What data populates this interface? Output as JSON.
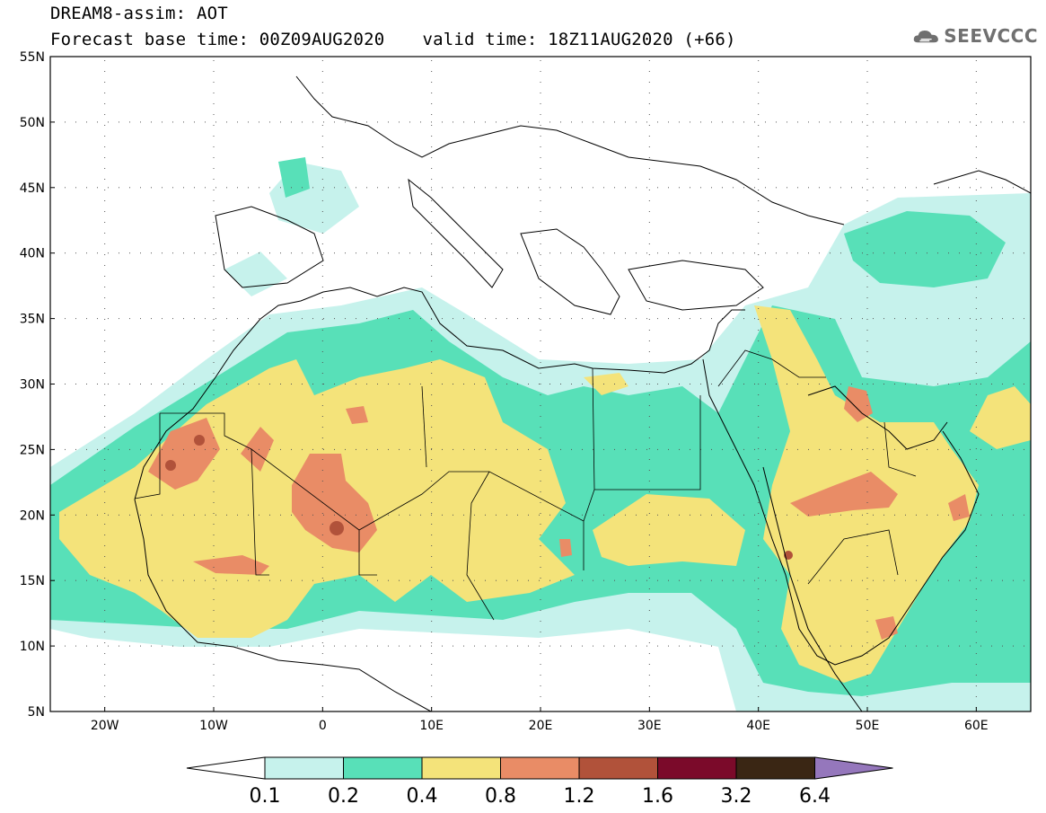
{
  "header": {
    "title_line1": "DREAM8-assim: AOT",
    "forecast_label": "Forecast base time: 00Z09AUG2020",
    "valid_label": "valid time: 18Z11AUG2020 (+66)"
  },
  "logo": {
    "text": "SEEVCCC",
    "icon": "cloud-icon"
  },
  "map": {
    "lon_range": [
      -25,
      65
    ],
    "lat_range": [
      5,
      55
    ],
    "lat_ticks": [
      "55N",
      "50N",
      "45N",
      "40N",
      "35N",
      "30N",
      "25N",
      "20N",
      "15N",
      "10N",
      "5N"
    ],
    "lon_ticks": [
      "20W",
      "10W",
      "0",
      "10E",
      "20E",
      "30E",
      "40E",
      "50E",
      "60E"
    ],
    "grid": true
  },
  "colorbar": {
    "boundaries": [
      "0.1",
      "0.2",
      "0.4",
      "0.8",
      "1.2",
      "1.6",
      "3.2",
      "6.4"
    ],
    "colors": {
      "c1": "#c6f2ec",
      "c2": "#58e0b8",
      "c3": "#f4e37a",
      "c4": "#e98c66",
      "c5": "#b1523a",
      "c6": "#7b0a2a",
      "c7": "#3a2614",
      "c8": "#9577bc"
    }
  }
}
